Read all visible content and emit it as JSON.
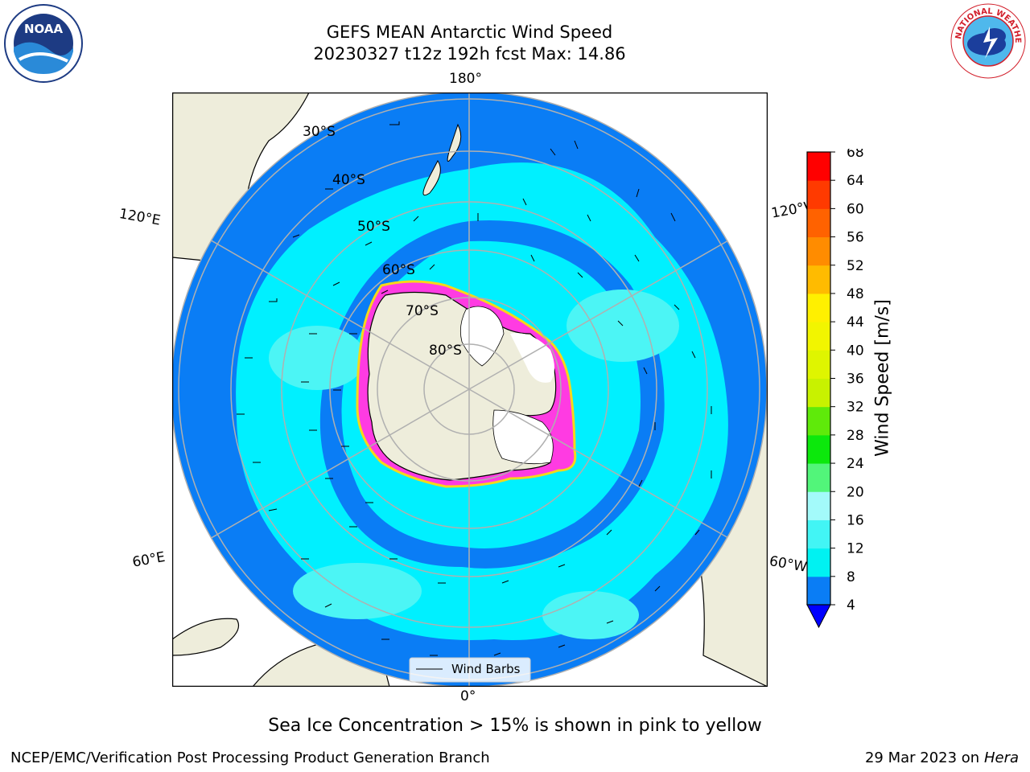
{
  "title_line1": "GEFS MEAN Antarctic Wind Speed",
  "title_line2": "20230327 t12z 192h fcst   Max: 14.86",
  "map": {
    "lon_labels": {
      "top": "180°",
      "bottom": "0°",
      "upper_left": "120°E",
      "lower_left": "60°E",
      "upper_right": "120°W",
      "lower_right": "60°W"
    },
    "lat_labels": [
      "30°S",
      "40°S",
      "50°S",
      "60°S",
      "70°S",
      "80°S"
    ],
    "legend_label": "Wind Barbs",
    "colors": {
      "ocean_low": "#0a7df5",
      "ocean_mid": "#00f0ff",
      "ocean_high": "#4cf5f5",
      "land": "#eeeddb",
      "sea_ice": "#ff3be2",
      "ice_edge": "#f5d81a"
    }
  },
  "colorbar": {
    "label": "Wind Speed [m/s]",
    "ticks": [
      "4",
      "8",
      "12",
      "16",
      "20",
      "24",
      "28",
      "32",
      "36",
      "40",
      "44",
      "48",
      "52",
      "56",
      "60",
      "64",
      "68"
    ],
    "colors": [
      "#0a7df5",
      "#00f2f2",
      "#42f5f5",
      "#a3fafa",
      "#52f57a",
      "#0ce80c",
      "#5fea0a",
      "#c8f200",
      "#dff500",
      "#f2f500",
      "#fff000",
      "#ffbb00",
      "#ff8c00",
      "#ff6200",
      "#ff3a00",
      "#ff0000"
    ],
    "extend_color": "#0000ff"
  },
  "note": "Sea Ice Concentration > 15% is shown in pink to yellow",
  "footer_left": "NCEP/EMC/Verification Post Processing Product Generation Branch",
  "footer_date": "29 Mar 2023 on",
  "footer_machine": "Hera",
  "logos": {
    "noaa": "NOAA",
    "nws": "NATIONAL WEATHER SERVICE"
  }
}
